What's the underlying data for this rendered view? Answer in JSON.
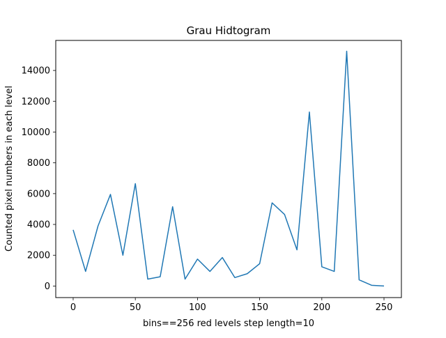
{
  "chart_data": {
    "type": "line",
    "title": "Grau Hidtogram",
    "xlabel": "bins==256 red levels step length=10",
    "ylabel": "Counted pixel numbers in each level",
    "xlim": [
      -14,
      264
    ],
    "ylim": [
      -750,
      15950
    ],
    "xticks": [
      0,
      50,
      100,
      150,
      200,
      250
    ],
    "yticks": [
      0,
      2000,
      4000,
      6000,
      8000,
      10000,
      12000,
      14000
    ],
    "grid": false,
    "series": [
      {
        "color": "#1f77b4",
        "x": [
          0,
          10,
          20,
          30,
          40,
          50,
          60,
          70,
          80,
          90,
          100,
          110,
          120,
          130,
          140,
          150,
          160,
          170,
          180,
          190,
          200,
          210,
          220,
          230,
          240,
          250
        ],
        "y": [
          3650,
          950,
          3900,
          5950,
          2000,
          6650,
          450,
          600,
          5150,
          450,
          1750,
          950,
          1850,
          550,
          800,
          1450,
          5400,
          4650,
          2350,
          11300,
          1250,
          950,
          15250,
          400,
          50,
          0
        ]
      }
    ]
  }
}
